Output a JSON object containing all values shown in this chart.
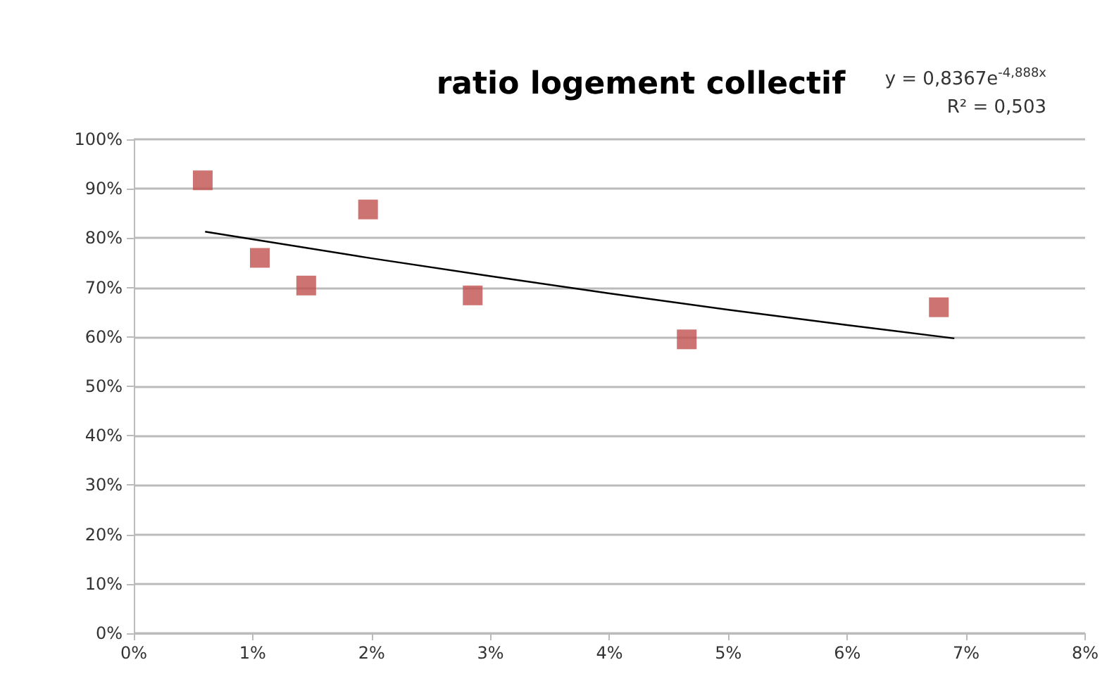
{
  "chart_data": {
    "type": "scatter",
    "title": "ratio logement collectif",
    "annotations": [
      "y = 0,8367e$^{-4,888x}$",
      "R² = 0,503"
    ],
    "series": [
      {
        "color": "#c0504d",
        "x": [
          0.58,
          1.06,
          1.45,
          1.97,
          2.85,
          4.65,
          6.77
        ],
        "values": [
          91.7,
          76,
          70.4,
          85.8,
          68.4,
          59.5,
          66
        ],
        "marker": "square"
      },
      {
        "type": "line",
        "color": "#000000",
        "x": [
          0.6,
          2,
          3,
          4,
          5,
          6,
          6.9
        ],
        "values": [
          81.3,
          75.9,
          72.3,
          68.8,
          65.5,
          62.4,
          59.7
        ],
        "marker": "none",
        "line_style": "solid"
      }
    ],
    "xlim": [
      0,
      8
    ],
    "xticks": [
      {
        "value": 0,
        "label": "0%"
      },
      {
        "value": 1,
        "label": "1%"
      },
      {
        "value": 2,
        "label": "2%"
      },
      {
        "value": 3,
        "label": "3%"
      },
      {
        "value": 4,
        "label": "4%"
      },
      {
        "value": 5,
        "label": "5%"
      },
      {
        "value": 6,
        "label": "6%"
      },
      {
        "value": 7,
        "label": "7%"
      },
      {
        "value": 8,
        "label": "8%"
      }
    ],
    "ylim": [
      0,
      100
    ],
    "yticks": [
      {
        "value": 0,
        "label": "0%"
      },
      {
        "value": 10,
        "label": "10%"
      },
      {
        "value": 20,
        "label": "20%"
      },
      {
        "value": 30,
        "label": "30%"
      },
      {
        "value": 40,
        "label": "40%"
      },
      {
        "value": 50,
        "label": "50%"
      },
      {
        "value": 60,
        "label": "60%"
      },
      {
        "value": 70,
        "label": "70%"
      },
      {
        "value": 80,
        "label": "80%"
      },
      {
        "value": 90,
        "label": "90%"
      },
      {
        "value": 100,
        "label": "100%"
      }
    ],
    "grid": "y"
  }
}
